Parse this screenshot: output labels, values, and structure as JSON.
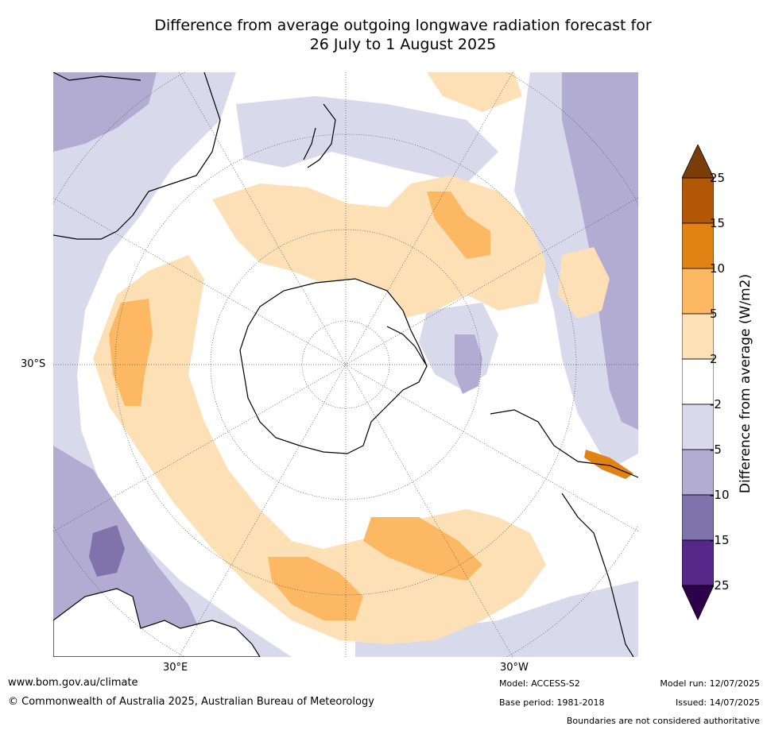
{
  "title_line1": "Difference from average outgoing longwave radiation forecast for",
  "title_line2": "26 July to 1 August 2025",
  "lat_label": "30°S",
  "lon_label_east": "30°E",
  "lon_label_west": "30°W",
  "colorbar": {
    "title": "Difference from average (W/m2)",
    "ticks": [
      "25",
      "15",
      "10",
      "5",
      "2",
      "-2",
      "-5",
      "-10",
      "-15",
      "-25"
    ],
    "colors": [
      "#7a3d0a",
      "#b35806",
      "#e08214",
      "#fdb863",
      "#fee0b6",
      "#ffffff",
      "#d8daeb",
      "#b2abd2",
      "#8073ac",
      "#542788",
      "#2d004b"
    ]
  },
  "footer": {
    "website": "www.bom.gov.au/climate",
    "copyright": "© Commonwealth of Australia 2025, Australian Bureau of Meteorology",
    "model": "Model: ACCESS-S2",
    "base_period": "Base period: 1981-2018",
    "model_run": "Model run: 12/07/2025",
    "issued": "Issued: 14/07/2025",
    "disclaimer": "Boundaries are not considered authoritative"
  }
}
